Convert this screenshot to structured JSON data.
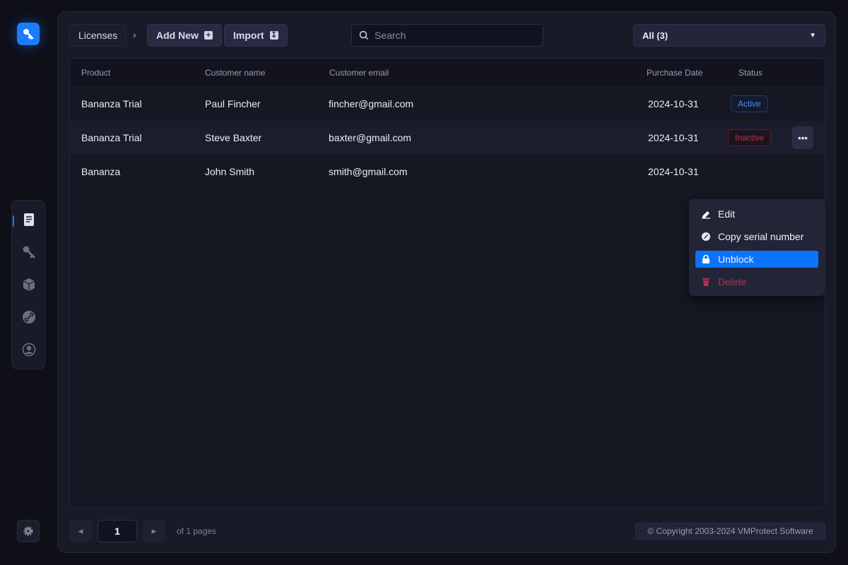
{
  "app": {
    "logo_icon": "key-icon",
    "accent": "#1a7cff"
  },
  "nav": {
    "items": [
      {
        "icon": "document-icon",
        "active": true
      },
      {
        "icon": "key-icon"
      },
      {
        "icon": "cube-icon"
      },
      {
        "icon": "link-icon"
      },
      {
        "icon": "user-circle-icon"
      }
    ],
    "settings_icon": "gear-icon"
  },
  "toolbar": {
    "breadcrumb": "Licenses",
    "breadcrumb_sep": "›",
    "add_new": "Add New",
    "import": "Import",
    "search_placeholder": "Search",
    "filter": "All (3)"
  },
  "table": {
    "headers": {
      "product": "Product",
      "name": "Customer name",
      "email": "Customer email",
      "date": "Purchase Date",
      "status": "Status"
    },
    "rows": [
      {
        "product": "Bananza Trial",
        "name": "Paul Fincher",
        "email": "fincher@gmail.com",
        "date": "2024-10-31",
        "status": "Active"
      },
      {
        "product": "Bananza Trial",
        "name": "Steve Baxter",
        "email": "baxter@gmail.com",
        "date": "2024-10-31",
        "status": "Inactive"
      },
      {
        "product": "Bananza",
        "name": "John Smith",
        "email": "smith@gmail.com",
        "date": "2024-10-31",
        "status": ""
      }
    ],
    "more_label": "•••"
  },
  "menu": {
    "edit": "Edit",
    "copy": "Copy serial number",
    "unblock": "Unblock",
    "delete": "Delete"
  },
  "pagination": {
    "page": "1",
    "of": "of 1 pages"
  },
  "footer": {
    "copyright": "© Copyright 2003-2024 VMProtect Software"
  }
}
